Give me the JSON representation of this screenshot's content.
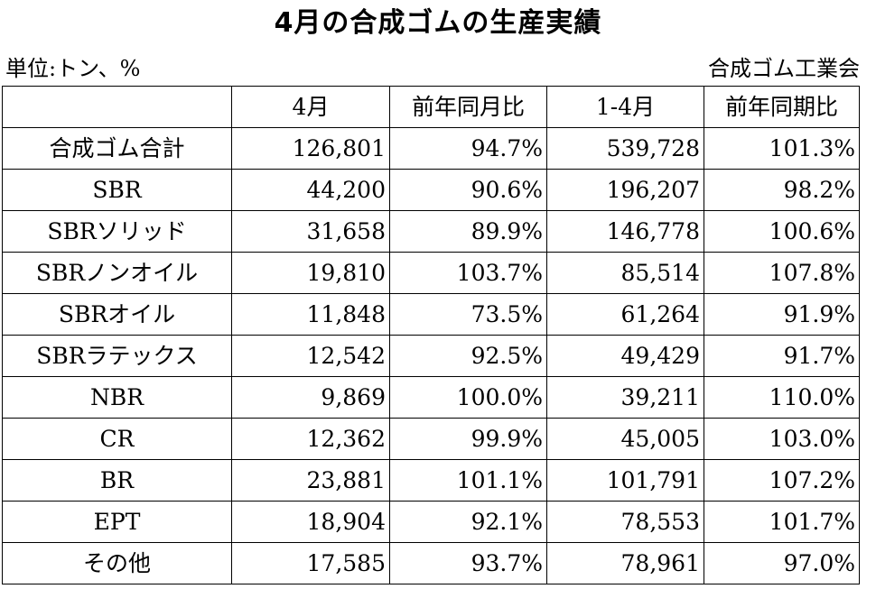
{
  "title": "4月の合成ゴムの生産実績",
  "unit_label": "単位:トン、%",
  "source_label": "合成ゴム工業会",
  "table": {
    "headers": [
      "",
      "4月",
      "前年同月比",
      "1-4月",
      "前年同期比"
    ],
    "rows": [
      [
        "合成ゴム合計",
        "126,801",
        "94.7%",
        "539,728",
        "101.3%"
      ],
      [
        "SBR",
        "44,200",
        "90.6%",
        "196,207",
        "98.2%"
      ],
      [
        "SBRソリッド",
        "31,658",
        "89.9%",
        "146,778",
        "100.6%"
      ],
      [
        "SBRノンオイル",
        "19,810",
        "103.7%",
        "85,514",
        "107.8%"
      ],
      [
        "SBRオイル",
        "11,848",
        "73.5%",
        "61,264",
        "91.9%"
      ],
      [
        "SBRラテックス",
        "12,542",
        "92.5%",
        "49,429",
        "91.7%"
      ],
      [
        "NBR",
        "9,869",
        "100.0%",
        "39,211",
        "110.0%"
      ],
      [
        "CR",
        "12,362",
        "99.9%",
        "45,005",
        "103.0%"
      ],
      [
        "BR",
        "23,881",
        "101.1%",
        "101,791",
        "107.2%"
      ],
      [
        "EPT",
        "18,904",
        "92.1%",
        "78,553",
        "101.7%"
      ],
      [
        "その他",
        "17,585",
        "93.7%",
        "78,961",
        "97.0%"
      ]
    ]
  }
}
